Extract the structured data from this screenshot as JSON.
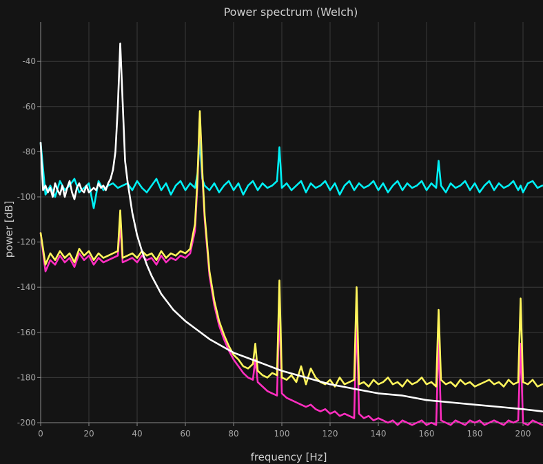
{
  "chart_data": {
    "type": "line",
    "title": "Power spectrum (Welch)",
    "xlabel": "frequency [Hz]",
    "ylabel": "power [dB]",
    "xlim": [
      0,
      208
    ],
    "ylim": [
      -203.5,
      -23
    ],
    "xticks": [
      0,
      20,
      40,
      60,
      80,
      100,
      120,
      140,
      160,
      180,
      200
    ],
    "yticks": [
      -200,
      -180,
      -160,
      -140,
      -120,
      -100,
      -80,
      -60,
      -40
    ],
    "xtick_labels": [
      "0",
      "20",
      "40",
      "60",
      "80",
      "100",
      "120",
      "140",
      "160",
      "180",
      "200"
    ],
    "ytick_labels": [
      "-200",
      "-180",
      "-160",
      "-140",
      "-120",
      "-100",
      "-80",
      "-60",
      "-40"
    ],
    "grid": true,
    "legend": "none",
    "series": [
      {
        "color": "#00f0f5",
        "x": [
          0,
          2,
          4,
          6,
          8,
          10,
          12,
          14,
          16,
          18,
          20,
          22,
          24,
          26,
          28,
          30,
          32,
          34,
          36,
          38,
          40,
          42,
          44,
          46,
          48,
          50,
          52,
          54,
          56,
          58,
          60,
          62,
          64,
          65,
          66,
          67,
          68,
          70,
          72,
          74,
          76,
          78,
          80,
          82,
          84,
          86,
          88,
          90,
          92,
          94,
          96,
          98,
          99,
          100,
          102,
          104,
          106,
          108,
          110,
          112,
          114,
          116,
          118,
          120,
          122,
          124,
          126,
          128,
          130,
          132,
          134,
          136,
          138,
          140,
          142,
          144,
          146,
          148,
          150,
          152,
          154,
          156,
          158,
          160,
          162,
          164,
          165,
          166,
          168,
          170,
          172,
          174,
          176,
          178,
          180,
          182,
          184,
          186,
          188,
          190,
          192,
          194,
          196,
          198,
          199,
          200,
          202,
          204,
          206,
          208
        ],
        "values": [
          -76,
          -99,
          -95,
          -100,
          -93,
          -97,
          -95,
          -92,
          -98,
          -96,
          -94,
          -105,
          -93,
          -97,
          -95,
          -94,
          -96,
          -95,
          -94,
          -97,
          -93,
          -96,
          -98,
          -95,
          -92,
          -97,
          -94,
          -99,
          -95,
          -93,
          -97,
          -94,
          -96,
          -90,
          -75,
          -92,
          -95,
          -97,
          -94,
          -98,
          -95,
          -93,
          -97,
          -94,
          -99,
          -95,
          -93,
          -97,
          -94,
          -96,
          -95,
          -93,
          -78,
          -96,
          -94,
          -97,
          -95,
          -93,
          -98,
          -94,
          -96,
          -95,
          -93,
          -97,
          -94,
          -99,
          -95,
          -93,
          -97,
          -94,
          -96,
          -95,
          -93,
          -97,
          -94,
          -98,
          -95,
          -93,
          -97,
          -94,
          -96,
          -95,
          -93,
          -97,
          -94,
          -96,
          -84,
          -95,
          -98,
          -94,
          -96,
          -95,
          -93,
          -97,
          -94,
          -98,
          -95,
          -93,
          -97,
          -94,
          -96,
          -95,
          -93,
          -97,
          -95,
          -98,
          -94,
          -93,
          -96,
          -95
        ]
      },
      {
        "color": "#ff2ec0",
        "x": [
          0,
          2,
          4,
          6,
          8,
          10,
          12,
          14,
          16,
          18,
          20,
          22,
          24,
          26,
          28,
          30,
          32,
          33,
          34,
          36,
          38,
          40,
          42,
          44,
          46,
          48,
          50,
          52,
          54,
          56,
          58,
          60,
          62,
          64,
          65,
          66,
          67,
          68,
          70,
          72,
          74,
          76,
          78,
          80,
          82,
          84,
          86,
          88,
          89,
          90,
          92,
          94,
          96,
          98,
          99,
          100,
          102,
          104,
          106,
          108,
          110,
          112,
          114,
          116,
          118,
          120,
          122,
          124,
          126,
          128,
          130,
          131,
          132,
          134,
          136,
          138,
          140,
          142,
          144,
          146,
          148,
          150,
          152,
          154,
          156,
          158,
          160,
          162,
          164,
          165,
          166,
          168,
          170,
          172,
          174,
          176,
          178,
          180,
          182,
          184,
          186,
          188,
          190,
          192,
          194,
          196,
          198,
          199,
          200,
          202,
          204,
          206,
          208
        ],
        "values": [
          -116,
          -133,
          -128,
          -130,
          -126,
          -129,
          -127,
          -131,
          -125,
          -128,
          -126,
          -130,
          -127,
          -129,
          -128,
          -127,
          -126,
          -112,
          -129,
          -128,
          -127,
          -129,
          -126,
          -128,
          -127,
          -130,
          -126,
          -129,
          -127,
          -128,
          -126,
          -127,
          -125,
          -115,
          -95,
          -63,
          -90,
          -110,
          -135,
          -148,
          -157,
          -163,
          -168,
          -172,
          -175,
          -178,
          -180,
          -181,
          -172,
          -182,
          -184,
          -186,
          -187,
          -188,
          -149,
          -187,
          -189,
          -190,
          -191,
          -192,
          -193,
          -192,
          -194,
          -195,
          -194,
          -196,
          -195,
          -197,
          -196,
          -197,
          -198,
          -152,
          -196,
          -198,
          -197,
          -199,
          -198,
          -199,
          -200,
          -199,
          -201,
          -199,
          -200,
          -201,
          -200,
          -199,
          -201,
          -200,
          -201,
          -162,
          -199,
          -200,
          -201,
          -199,
          -200,
          -201,
          -199,
          -200,
          -199,
          -201,
          -200,
          -199,
          -200,
          -201,
          -199,
          -200,
          -199,
          -165,
          -200,
          -201,
          -199,
          -200,
          -201
        ]
      },
      {
        "color": "#fff55c",
        "x": [
          0,
          2,
          4,
          6,
          8,
          10,
          12,
          14,
          16,
          18,
          20,
          22,
          24,
          26,
          28,
          30,
          32,
          33,
          34,
          36,
          38,
          40,
          42,
          44,
          46,
          48,
          50,
          52,
          54,
          56,
          58,
          60,
          62,
          64,
          65,
          66,
          67,
          68,
          70,
          72,
          74,
          76,
          78,
          80,
          82,
          84,
          86,
          88,
          89,
          90,
          92,
          94,
          96,
          98,
          99,
          100,
          102,
          104,
          106,
          108,
          110,
          112,
          114,
          116,
          118,
          120,
          122,
          124,
          126,
          128,
          130,
          131,
          132,
          134,
          136,
          138,
          140,
          142,
          144,
          146,
          148,
          150,
          152,
          154,
          156,
          158,
          160,
          162,
          164,
          165,
          166,
          168,
          170,
          172,
          174,
          176,
          178,
          180,
          182,
          184,
          186,
          188,
          190,
          192,
          194,
          196,
          198,
          199,
          200,
          202,
          204,
          206,
          208
        ],
        "values": [
          -116,
          -130,
          -125,
          -128,
          -124,
          -127,
          -125,
          -129,
          -123,
          -126,
          -124,
          -128,
          -125,
          -127,
          -126,
          -125,
          -124,
          -106,
          -127,
          -126,
          -125,
          -127,
          -124,
          -126,
          -125,
          -128,
          -124,
          -127,
          -125,
          -126,
          -124,
          -125,
          -123,
          -112,
          -92,
          -62,
          -88,
          -108,
          -133,
          -146,
          -155,
          -161,
          -166,
          -170,
          -172,
          -175,
          -176,
          -174,
          -165,
          -177,
          -179,
          -180,
          -178,
          -179,
          -137,
          -180,
          -181,
          -179,
          -182,
          -175,
          -183,
          -176,
          -180,
          -182,
          -183,
          -181,
          -184,
          -180,
          -183,
          -182,
          -181,
          -140,
          -183,
          -182,
          -184,
          -181,
          -183,
          -182,
          -180,
          -183,
          -182,
          -184,
          -181,
          -183,
          -182,
          -180,
          -183,
          -182,
          -184,
          -150,
          -181,
          -183,
          -182,
          -184,
          -181,
          -183,
          -182,
          -184,
          -183,
          -182,
          -181,
          -183,
          -182,
          -184,
          -181,
          -183,
          -182,
          -145,
          -182,
          -183,
          -181,
          -184,
          -183
        ]
      },
      {
        "color": "#ffffff",
        "x": [
          0,
          1,
          2,
          3,
          4,
          5,
          6,
          7,
          8,
          9,
          10,
          11,
          12,
          13,
          14,
          15,
          16,
          17,
          18,
          19,
          20,
          21,
          22,
          23,
          24,
          25,
          26,
          27,
          28,
          29,
          30,
          31,
          32,
          33,
          34,
          35,
          36,
          38,
          40,
          42,
          44,
          46,
          48,
          50,
          55,
          60,
          65,
          70,
          75,
          80,
          90,
          100,
          110,
          120,
          130,
          140,
          150,
          160,
          170,
          180,
          190,
          200,
          208
        ],
        "values": [
          -76,
          -97,
          -95,
          -98,
          -96,
          -100,
          -94,
          -97,
          -99,
          -95,
          -100,
          -96,
          -93,
          -98,
          -101,
          -96,
          -94,
          -97,
          -98,
          -95,
          -98,
          -97,
          -96,
          -97,
          -94,
          -96,
          -95,
          -97,
          -94,
          -92,
          -88,
          -80,
          -60,
          -32,
          -58,
          -84,
          -93,
          -107,
          -117,
          -124,
          -130,
          -135,
          -139,
          -143,
          -150,
          -155,
          -159,
          -163,
          -166,
          -169,
          -173,
          -177,
          -180,
          -183,
          -185,
          -187,
          -188,
          -190,
          -191,
          -192,
          -193,
          -194,
          -195
        ]
      }
    ]
  }
}
